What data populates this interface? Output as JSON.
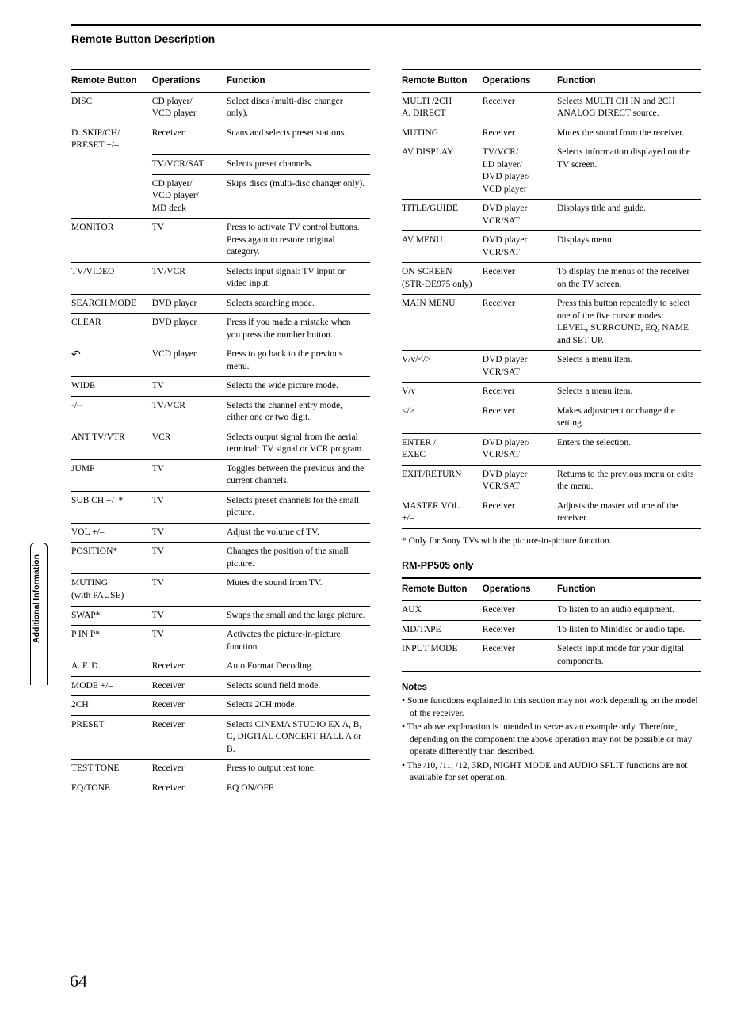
{
  "section_title": "Remote Button Description",
  "headers": {
    "remote": "Remote Button",
    "ops": "Operations",
    "func": "Function"
  },
  "left_rows": [
    {
      "btn": "DISC",
      "ops": "CD player/\nVCD player",
      "func": "Select discs (multi-disc changer only)."
    },
    {
      "btn": "D. SKIP/CH/\nPRESET +/–",
      "ops": "Receiver",
      "func": "Scans and selects preset stations.",
      "join_below": true
    },
    {
      "btn": "",
      "ops": "TV/VCR/SAT",
      "func": "Selects preset channels.",
      "join_below": true
    },
    {
      "btn": "",
      "ops": "CD player/\nVCD player/\nMD deck",
      "func": "Skips discs (multi-disc changer only)."
    },
    {
      "btn": "MONITOR",
      "ops": "TV",
      "func": "Press to activate TV control buttons. Press again to restore original category."
    },
    {
      "btn": "TV/VIDEO",
      "ops": "TV/VCR",
      "func": "Selects input signal: TV input or video input."
    },
    {
      "btn": "SEARCH MODE",
      "ops": "DVD player",
      "func": "Selects searching mode."
    },
    {
      "btn": "CLEAR",
      "ops": "DVD player",
      "func": "Press if you made a mistake when you press the number button."
    },
    {
      "btn": "__BACK_ICON__",
      "ops": "VCD player",
      "func": "Press to go back to the previous menu."
    },
    {
      "btn": "WIDE",
      "ops": "TV",
      "func": "Selects the wide picture mode."
    },
    {
      "btn": "-/--",
      "ops": "TV/VCR",
      "func": "Selects the channel entry mode, either one or two digit."
    },
    {
      "btn": "ANT TV/VTR",
      "ops": "VCR",
      "func": "Selects output signal from the aerial terminal: TV signal or VCR program."
    },
    {
      "btn": "JUMP",
      "ops": "TV",
      "func": "Toggles between the previous and the current channels."
    },
    {
      "btn": "SUB CH +/–*",
      "ops": "TV",
      "func": "Selects preset channels for the small picture."
    },
    {
      "btn": "VOL +/–",
      "ops": "TV",
      "func": "Adjust the volume of TV."
    },
    {
      "btn": "POSITION*",
      "ops": "TV",
      "func": "Changes the position of the small picture."
    },
    {
      "btn": "MUTING\n(with PAUSE)",
      "ops": "TV",
      "func": "Mutes the sound from TV."
    },
    {
      "btn": "SWAP*",
      "ops": "TV",
      "func": "Swaps the small and the large picture."
    },
    {
      "btn": "P IN P*",
      "ops": "TV",
      "func": "Activates the picture-in-picture function."
    },
    {
      "btn": "A. F. D.",
      "ops": "Receiver",
      "func": "Auto Format Decoding."
    },
    {
      "btn": "MODE +/–",
      "ops": "Receiver",
      "func": "Selects sound field mode."
    },
    {
      "btn": "2CH",
      "ops": "Receiver",
      "func": "Selects 2CH mode."
    },
    {
      "btn": "PRESET",
      "ops": "Receiver",
      "func": "Selects CINEMA STUDIO EX A, B, C, DIGITAL CONCERT HALL A or  B."
    },
    {
      "btn": "TEST TONE",
      "ops": "Receiver",
      "func": "Press to output test tone."
    },
    {
      "btn": "EQ/TONE",
      "ops": "Receiver",
      "func": "EQ ON/OFF."
    }
  ],
  "right_rows": [
    {
      "btn": "MULTI /2CH\nA. DIRECT",
      "ops": "Receiver",
      "func": "Selects MULTI CH IN and 2CH ANALOG DIRECT source."
    },
    {
      "btn": "MUTING",
      "ops": "Receiver",
      "func": "Mutes the sound from the receiver."
    },
    {
      "btn": "AV DISPLAY",
      "ops": "TV/VCR/\nLD player/\nDVD player/\nVCD player",
      "func": "Selects information displayed on the TV screen."
    },
    {
      "btn": "TITLE/GUIDE",
      "ops": "DVD player\nVCR/SAT",
      "func": "Displays title and guide."
    },
    {
      "btn": "AV MENU",
      "ops": "DVD player\nVCR/SAT",
      "func": "Displays menu."
    },
    {
      "btn": "ON SCREEN\n(STR-DE975 only)",
      "ops": "Receiver",
      "func": "To display the menus of the receiver on the TV screen."
    },
    {
      "btn": "MAIN MENU",
      "ops": "Receiver",
      "func": "Press this button repeatedly to select one of the five cursor modes: LEVEL, SURROUND, EQ, NAME and SET UP."
    },
    {
      "btn": "V/v/</>",
      "ops": "DVD player\nVCR/SAT",
      "func": "Selects a menu item."
    },
    {
      "btn": "V/v",
      "ops": "Receiver",
      "func": "Selects a menu item."
    },
    {
      "btn": "</>",
      "ops": "Receiver",
      "func": "Makes adjustment or change the setting."
    },
    {
      "btn": "ENTER /\nEXEC",
      "ops": "DVD player/\nVCR/SAT",
      "func": "Enters the selection."
    },
    {
      "btn": "EXIT/RETURN",
      "ops": "DVD player\nVCR/SAT",
      "func": "Returns to the previous menu or exits the menu."
    },
    {
      "btn": "MASTER VOL\n+/–",
      "ops": "Receiver",
      "func": "Adjusts the master volume of the receiver."
    }
  ],
  "footnote": "* Only for Sony TVs with the picture-in-picture function.",
  "rm_head": "RM-PP505 only",
  "rm_rows": [
    {
      "btn": "AUX",
      "ops": "Receiver",
      "func": "To listen to an audio equipment."
    },
    {
      "btn": "MD/TAPE",
      "ops": "Receiver",
      "func": "To listen to Minidisc or audio tape."
    },
    {
      "btn": "INPUT MODE",
      "ops": "Receiver",
      "func": "Selects input mode for your digital components."
    }
  ],
  "notes_head": "Notes",
  "notes": [
    "Some functions explained in this section may not work depending on the model of the receiver.",
    "The above explanation is intended to serve as an example only. Therefore, depending on the component the above operation may not be possible or may operate differently than described.",
    "The /10, /11, /12, 3RD, NIGHT MODE and AUDIO SPLIT functions are not available for set operation."
  ],
  "side_tab": "Additional Information",
  "page_num": "64"
}
